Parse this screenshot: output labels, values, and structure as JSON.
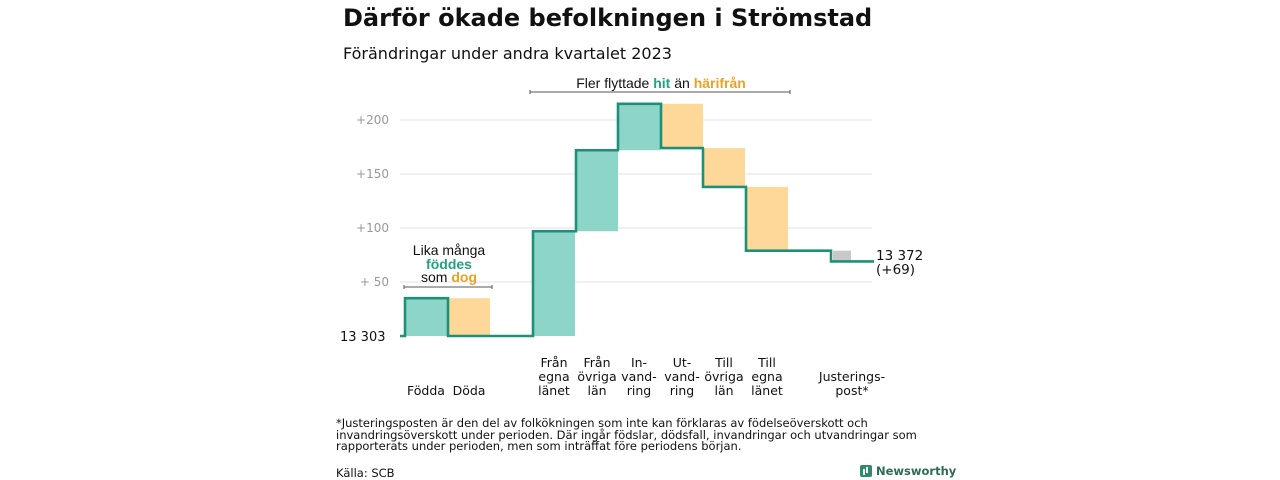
{
  "title": "Därför ökade befolkningen i Strömstad",
  "subtitle": "Förändringar under andra kvartalet 2023",
  "footnote": "*Justeringsposten är den del av folkökningen som inte kan förklaras av födelseöverskott och invandringsöverskott under perioden. Där ingår födslar, dödsfall, invandringar och utvandringar som rapporterats under perioden, men som inträffat före periodens början.",
  "source": "Källa: SCB",
  "brand": "Newsworthy",
  "colors": {
    "increase": "#8dd5c8",
    "decrease": "#fdd898",
    "adjustment": "#c8c8c8",
    "line": "#1f9078"
  },
  "chart_data": {
    "type": "waterfall",
    "base_value": 13303,
    "base_label": "13  303",
    "end_label": [
      "13 372",
      "(+69)"
    ],
    "ylim": [
      0,
      215
    ],
    "yticks": [
      {
        "value": 50,
        "label": "+  50"
      },
      {
        "value": 100,
        "label": "+100"
      },
      {
        "value": 150,
        "label": "+150"
      },
      {
        "value": 200,
        "label": "+200"
      }
    ],
    "steps": [
      {
        "label": [
          "",
          "",
          "Födda"
        ],
        "change": 35,
        "kind": "increase"
      },
      {
        "label": [
          "",
          "",
          "Döda"
        ],
        "change": -35,
        "kind": "decrease"
      },
      {
        "label": [
          "Från",
          "egna",
          "länet"
        ],
        "change": 97,
        "kind": "increase"
      },
      {
        "label": [
          "Från",
          "övriga",
          "län"
        ],
        "change": 75,
        "kind": "increase"
      },
      {
        "label": [
          "In-",
          "vand-",
          "ring"
        ],
        "change": 43,
        "kind": "increase"
      },
      {
        "label": [
          "Ut-",
          "vand-",
          "ring"
        ],
        "change": -41,
        "kind": "decrease"
      },
      {
        "label": [
          "Till",
          "övriga",
          "län"
        ],
        "change": -36,
        "kind": "decrease"
      },
      {
        "label": [
          "Till",
          "egna",
          "länet"
        ],
        "change": -59,
        "kind": "decrease"
      },
      {
        "label": [
          "",
          "Justerings-",
          "post*"
        ],
        "change": -10,
        "kind": "adjustment"
      }
    ],
    "annotation_left": {
      "line1": "Lika många",
      "line2": "föddes",
      "line3_a": "som ",
      "line3_b": "dog"
    },
    "annotation_top": {
      "a": "Fler flyttade ",
      "b": "hit",
      "c": " än ",
      "d": "härifrån"
    }
  }
}
